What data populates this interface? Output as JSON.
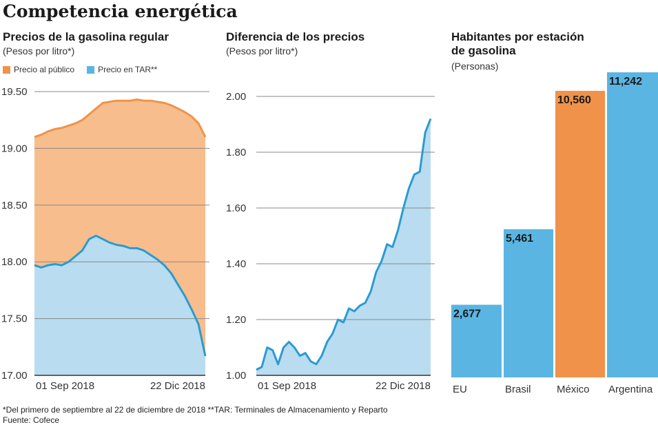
{
  "title": "Competencia energética",
  "colors": {
    "orange": "#f0924a",
    "orange_fill": "#f8bd8c",
    "blue": "#2a9bd1",
    "blue_fill": "#b9dcf0",
    "bar_blue": "#5ab5e2",
    "bar_orange": "#f0924a"
  },
  "footnote": "*Del primero de septiembre al 22 de diciembre de 2018  **TAR: Terminales de Almacenamiento y Reparto",
  "source": "Fuente: Cofece",
  "chart_data": [
    {
      "type": "area",
      "title": "Precios de la gasolina regular",
      "subtitle": "(Pesos por litro*)",
      "ylim": [
        17.0,
        19.5
      ],
      "yticks": [
        "19.50",
        "19.00",
        "18.50",
        "18.00",
        "17.50",
        "17.00"
      ],
      "ytick_values": [
        19.5,
        19.0,
        18.5,
        18.0,
        17.5,
        17.0
      ],
      "xtick_labels": [
        "01 Sep 2018",
        "22 Dic 2018"
      ],
      "series": [
        {
          "name": "Precio al público",
          "values": [
            19.1,
            19.12,
            19.15,
            19.17,
            19.18,
            19.2,
            19.22,
            19.25,
            19.3,
            19.35,
            19.4,
            19.41,
            19.42,
            19.42,
            19.42,
            19.43,
            19.42,
            19.42,
            19.41,
            19.4,
            19.38,
            19.35,
            19.32,
            19.28,
            19.22,
            19.1
          ]
        },
        {
          "name": "Precio en TAR**",
          "values": [
            17.97,
            17.95,
            17.97,
            17.98,
            17.97,
            18.0,
            18.05,
            18.1,
            18.2,
            18.23,
            18.2,
            18.17,
            18.15,
            18.14,
            18.12,
            18.12,
            18.1,
            18.06,
            18.02,
            17.97,
            17.9,
            17.8,
            17.7,
            17.58,
            17.45,
            17.17
          ]
        }
      ]
    },
    {
      "type": "area",
      "title": "Diferencia de los precios",
      "subtitle": "(Pesos por litro*)",
      "ylim": [
        1.0,
        2.0
      ],
      "yticks": [
        "2.00",
        "1.80",
        "1.60",
        "1.40",
        "1.20",
        "1.00"
      ],
      "ytick_values": [
        2.0,
        1.8,
        1.6,
        1.4,
        1.2,
        1.0
      ],
      "xtick_labels": [
        "01 Sep 2018",
        "22 Dic 2018"
      ],
      "series": [
        {
          "name": "Diferencia",
          "values": [
            1.02,
            1.03,
            1.1,
            1.09,
            1.04,
            1.1,
            1.12,
            1.1,
            1.07,
            1.08,
            1.05,
            1.04,
            1.07,
            1.12,
            1.15,
            1.2,
            1.19,
            1.24,
            1.23,
            1.25,
            1.26,
            1.3,
            1.37,
            1.41,
            1.47,
            1.46,
            1.52,
            1.6,
            1.67,
            1.72,
            1.73,
            1.87,
            1.92
          ]
        }
      ]
    },
    {
      "type": "bar",
      "title": "Habitantes por estación de gasolina",
      "title_lines": [
        "Habitantes por estación",
        "de gasolina"
      ],
      "subtitle": "(Personas)",
      "categories": [
        "EU",
        "Brasil",
        "México",
        "Argentina"
      ],
      "values": [
        2677,
        5461,
        10560,
        11242
      ],
      "value_labels": [
        "2,677",
        "5,461",
        "10,560",
        "11,242"
      ],
      "highlight": "México"
    }
  ]
}
